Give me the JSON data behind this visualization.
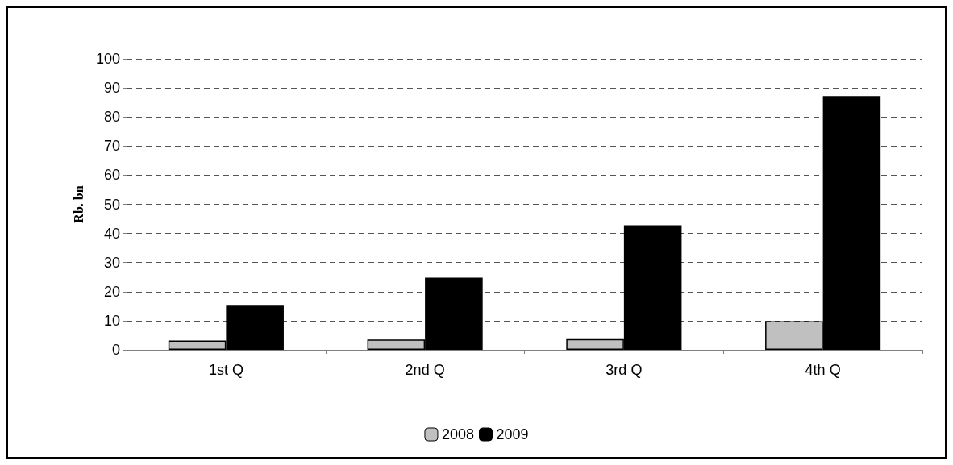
{
  "chart_data": {
    "type": "bar",
    "ylabel": "Rb. bn",
    "categories": [
      "1st Q",
      "2nd Q",
      "3rd Q",
      "4th Q"
    ],
    "series": [
      {
        "name": "2008",
        "color": "#c0c0c0",
        "values": [
          3.2,
          3.5,
          3.7,
          9.8
        ]
      },
      {
        "name": "2009",
        "color": "#000000",
        "values": [
          15.2,
          24.8,
          42.8,
          87.2
        ]
      }
    ],
    "ylim": [
      0,
      100
    ],
    "yticks": [
      0,
      10,
      20,
      30,
      40,
      50,
      60,
      70,
      80,
      90,
      100
    ],
    "grid": "y",
    "legend": "bottom"
  }
}
